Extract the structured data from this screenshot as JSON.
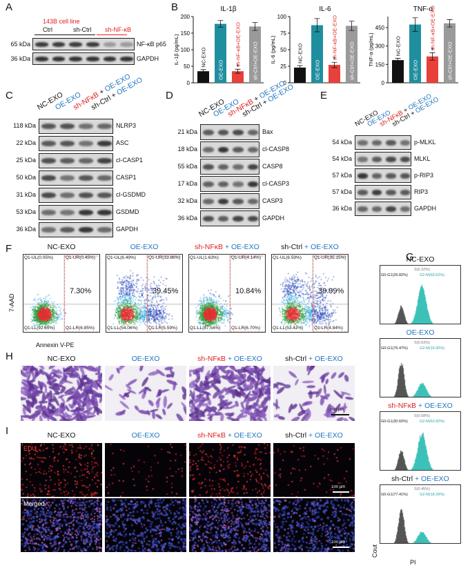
{
  "panels": {
    "A": {
      "letter": "A",
      "cell_line": "143B cell line",
      "lanes": [
        "Ctrl",
        "sh-Ctrl",
        "sh-NF-κB"
      ],
      "rows": [
        {
          "kda": "65 kDa",
          "label": "NF-κB p65",
          "intensity": [
            0.9,
            0.9,
            0.9,
            0.9,
            0.35,
            0.35
          ]
        },
        {
          "kda": "36 kDa",
          "label": "GAPDH",
          "intensity": [
            0.95,
            0.95,
            0.95,
            0.95,
            0.95,
            0.95
          ]
        }
      ]
    },
    "B": {
      "letter": "B",
      "colors": {
        "nc": "#111111",
        "oe": "#1f8fa0",
        "sh": "#e8403a",
        "shctrl": "#9a9a9a"
      },
      "bar_labels": [
        "NC-EXO",
        "OE-EXO",
        "sh-NF-κB+OE-EXO",
        "sh-Ctrl+OE-EXO"
      ]
    },
    "C": {
      "letter": "C",
      "header": {
        "nc": "NC-EXO",
        "oe": "OE-EXO",
        "sh_red": "sh-NFκB",
        "plus": " + ",
        "oe2": "OE-EXO",
        "shctrl": "sh-Ctrl",
        "plus2": " + ",
        "oe3": "OE-EXO"
      },
      "rows": [
        {
          "kda": "118 kDa",
          "label": "NLRP3"
        },
        {
          "kda": "22 kDa",
          "label": "ASC"
        },
        {
          "kda": "25 kDa",
          "label": "cl-CASP1"
        },
        {
          "kda": "50 kDa",
          "label": "CASP1"
        },
        {
          "kda": "31 kDa",
          "label": "cl-GSDMD"
        },
        {
          "kda": "53 kDa",
          "label": "GSDMD"
        },
        {
          "kda": "36 kDa",
          "label": "GAPDH"
        }
      ]
    },
    "D": {
      "letter": "D",
      "rows": [
        {
          "kda": "21 kDa",
          "label": "Bax"
        },
        {
          "kda": "18 kDa",
          "label": "cl-CASP8"
        },
        {
          "kda": "55 kDa",
          "label": "CASP8"
        },
        {
          "kda": "17 kDa",
          "label": "cl-CASP3"
        },
        {
          "kda": "32 kDa",
          "label": "CASP3"
        },
        {
          "kda": "36 kDa",
          "label": "GAPDH"
        }
      ]
    },
    "E": {
      "letter": "E",
      "rows": [
        {
          "kda": "54 kDa",
          "label": "p-MLKL"
        },
        {
          "kda": "54 kDa",
          "label": "MLKL"
        },
        {
          "kda": "57 kDa",
          "label": "p-RIP3"
        },
        {
          "kda": "57 kDa",
          "label": "RIP3"
        },
        {
          "kda": "36 kDa",
          "label": "GAPDH"
        }
      ]
    },
    "F": {
      "letter": "F",
      "titles": [
        {
          "a": "NC-EXO",
          "b": "",
          "c": ""
        },
        {
          "a": "",
          "b": "",
          "c": "OE-EXO"
        },
        {
          "a": "",
          "b": "sh-NFκB",
          "c": " + OE-EXO"
        },
        {
          "a": "sh-Ctrl",
          "b": "",
          "c": " + OE-EXO"
        }
      ],
      "plots": [
        {
          "ul": "Q1-UL(0.05%)",
          "ur": "Q1-UR(0.45%)",
          "ll": "Q1-LL(92.65%)",
          "lr": "Q1-LR(6.85%)",
          "pct": "7.30%"
        },
        {
          "ul": "Q1-UL(6.49%)",
          "ur": "Q1-UR(33.86%)",
          "ll": "Q1-LL(54.06%)",
          "lr": "Q1-LR(5.59%)",
          "pct": "39.45%"
        },
        {
          "ul": "Q1-UL(1.63%)",
          "ur": "Q1-UR(4.14%)",
          "ll": "Q1-LL(87.54%)",
          "lr": "Q1-LR(6.70%)",
          "pct": "10.84%"
        },
        {
          "ul": "Q1-UL(6.59%)",
          "ur": "Q1-UR(35.15%)",
          "ll": "Q1-LL(53.42%)",
          "lr": "Q1-LR(4.84%)",
          "pct": "39.99%"
        }
      ],
      "ylabel": "7-AAD",
      "xlabel": "Annexin V-PE"
    },
    "G": {
      "letter": "G",
      "titles": [
        {
          "a": "NC-EXO",
          "b": "",
          "c": ""
        },
        {
          "a": "",
          "b": "",
          "c": "OE-EXO"
        },
        {
          "a": "",
          "b": "sh-NFκB",
          "c": " + OE-EXO"
        },
        {
          "a": "sh-Ctrl",
          "b": "",
          "c": " + OE-EXO"
        }
      ],
      "hists": [
        {
          "s": "S(0.32%)",
          "g0": "G0-G1(26.82%)",
          "g2": "G2-M(69.62%)"
        },
        {
          "s": "S(0.63%)",
          "g0": "G0-G1(76.47%)",
          "g2": "G2-M(16.00%)"
        },
        {
          "s": "S(0.58%)",
          "g0": "G0-G1(30.60%)",
          "g2": "G2-M(63.82%)"
        },
        {
          "s": "S(0.45%)",
          "g0": "G0-G1(77.41%)",
          "g2": "G2-M(18.29%)"
        }
      ],
      "ylabel": "Cout",
      "xlabel": "PI"
    },
    "H": {
      "letter": "H",
      "titles": [
        {
          "a": "NC-EXO",
          "b": "",
          "c": ""
        },
        {
          "a": "",
          "b": "",
          "c": "OE-EXO"
        },
        {
          "a": "",
          "b": "sh-NFκB",
          "c": " + OE-EXO"
        },
        {
          "a": "sh-Ctrl",
          "b": "",
          "c": " + OE-EXO"
        }
      ],
      "density": [
        1.0,
        0.18,
        0.85,
        0.22
      ],
      "scale": "100 μm"
    },
    "I": {
      "letter": "I",
      "titles": [
        {
          "a": "NC-EXO",
          "b": "",
          "c": ""
        },
        {
          "a": "",
          "b": "",
          "c": "OE-EXO"
        },
        {
          "a": "",
          "b": "sh-NFκB",
          "c": " + OE-EXO"
        },
        {
          "a": "sh-Ctrl",
          "b": "",
          "c": " + OE-EXO"
        }
      ],
      "row1": "EDU",
      "row2": "Merged",
      "edu_density": [
        1.0,
        0.25,
        0.9,
        0.3
      ],
      "scale": "100 μm"
    }
  },
  "chart_data": [
    {
      "type": "bar",
      "title": "IL-1β",
      "ylabel": "IL-1β (pg/mL)",
      "categories": [
        "NC-EXO",
        "OE-EXO",
        "sh-NF-κB+OE-EXO",
        "sh-Ctrl+OE-EXO"
      ],
      "values": [
        35,
        178,
        35,
        170
      ],
      "errors": [
        5,
        10,
        6,
        12
      ],
      "ylim": [
        0,
        200
      ],
      "yticks": [
        0,
        50,
        100,
        150,
        200
      ],
      "star_index": 2
    },
    {
      "type": "bar",
      "title": "IL-6",
      "ylabel": "IL-6 (pg/mL)",
      "categories": [
        "NC-EXO",
        "OE-EXO",
        "sh-NF-κB+OE-EXO",
        "sh-Ctrl+OE-EXO"
      ],
      "values": [
        23,
        87,
        27,
        86
      ],
      "errors": [
        3,
        10,
        4,
        7
      ],
      "ylim": [
        0,
        100
      ],
      "yticks": [
        0,
        25,
        50,
        75,
        100
      ],
      "star_index": 2
    },
    {
      "type": "bar",
      "title": "TNF-α",
      "ylabel": "TNF-α (pg/mL)",
      "categories": [
        "NC-EXO",
        "OE-EXO",
        "sh-NF-κB+OE-EXO",
        "sh-Ctrl+OE-EXO"
      ],
      "values": [
        185,
        475,
        215,
        485
      ],
      "errors": [
        15,
        55,
        30,
        30
      ],
      "ylim": [
        0,
        540
      ],
      "yticks": [
        0,
        150,
        300,
        450
      ],
      "star_index": 2
    }
  ]
}
